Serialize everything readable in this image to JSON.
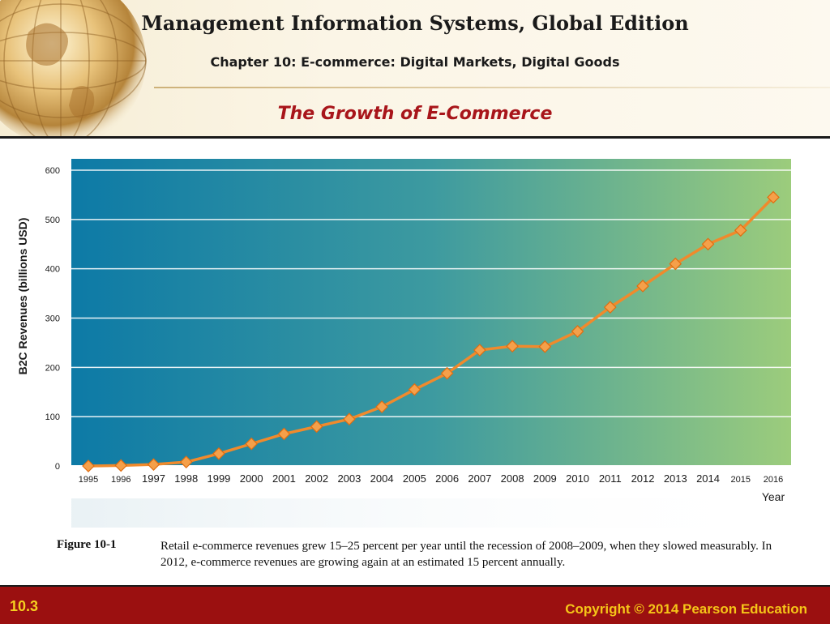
{
  "header": {
    "book_title": "Management Information Systems, Global Edition",
    "chapter_title": "Chapter 10: E-commerce: Digital Markets, Digital Goods",
    "slide_title": "The Growth of E-Commerce"
  },
  "chart_data": {
    "type": "line",
    "title": "",
    "xlabel": "Year",
    "ylabel": "B2C Revenues (billions USD)",
    "categories": [
      "1995",
      "1996",
      "1997",
      "1998",
      "1999",
      "2000",
      "2001",
      "2002",
      "2003",
      "2004",
      "2005",
      "2006",
      "2007",
      "2008",
      "2009",
      "2010",
      "2011",
      "2012",
      "2013",
      "2014",
      "2015",
      "2016"
    ],
    "series": [
      {
        "name": "B2C Revenues",
        "values": [
          0,
          1,
          3,
          8,
          25,
          45,
          65,
          80,
          95,
          120,
          155,
          188,
          235,
          243,
          242,
          273,
          322,
          365,
          410,
          450,
          478,
          545
        ]
      }
    ],
    "ylim": [
      0,
      600
    ],
    "yticks": [
      0,
      100,
      200,
      300,
      400,
      500,
      600
    ],
    "grid": true,
    "colors": {
      "line": "#f08a2c",
      "marker": "#f5a04a",
      "marker_edge": "#e06d10",
      "grid": "#ffffff",
      "bg_left": "#0d7aa6",
      "bg_mid": "#3d9aa0",
      "bg_right": "#9ccc7c"
    }
  },
  "caption": {
    "label": "Figure 10-1",
    "text": "Retail e-commerce revenues grew 15–25 percent per year until the recession of 2008–2009, when they slowed measurably. In 2012, e-commerce revenues are growing again at an estimated 15 percent annually."
  },
  "footer": {
    "slide_number": "10.3",
    "copyright": "Copyright © 2014 Pearson Education"
  }
}
